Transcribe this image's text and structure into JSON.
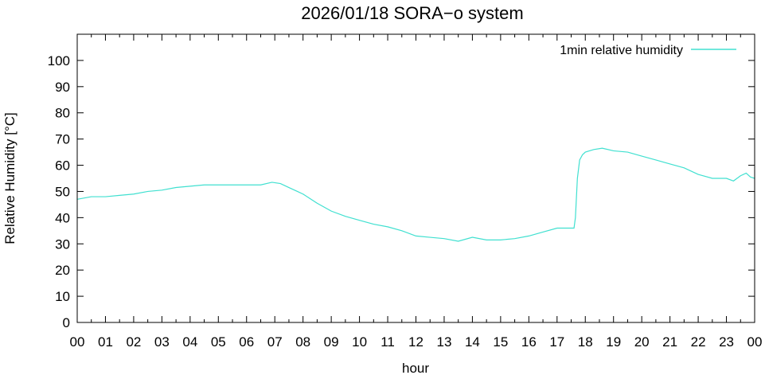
{
  "chart_data": {
    "type": "line",
    "title": "2026/01/18 SORA−o system",
    "xlabel": "hour",
    "ylabel": "Relative Humidity [°C]",
    "xlim": [
      0,
      24
    ],
    "ylim": [
      0,
      110
    ],
    "x_tick_labels": [
      "00",
      "01",
      "02",
      "03",
      "04",
      "05",
      "06",
      "07",
      "08",
      "09",
      "10",
      "11",
      "12",
      "13",
      "14",
      "15",
      "16",
      "17",
      "18",
      "19",
      "20",
      "21",
      "22",
      "23",
      "00"
    ],
    "y_ticks": [
      0,
      10,
      20,
      30,
      40,
      50,
      60,
      70,
      80,
      90,
      100
    ],
    "grid": false,
    "legend_position": "top-right",
    "series": [
      {
        "name": "1min relative humidity",
        "color": "#40e0d0",
        "x": [
          0,
          0.25,
          0.5,
          1.0,
          1.5,
          2.0,
          2.5,
          3.0,
          3.5,
          4.0,
          4.5,
          5.0,
          5.5,
          6.0,
          6.5,
          6.9,
          7.2,
          7.5,
          7.8,
          8.0,
          8.5,
          9.0,
          9.5,
          10.0,
          10.5,
          11.0,
          11.5,
          12.0,
          12.5,
          13.0,
          13.5,
          14.0,
          14.5,
          15.0,
          15.5,
          16.0,
          16.5,
          17.0,
          17.3,
          17.6,
          17.65,
          17.72,
          17.8,
          17.9,
          18.0,
          18.3,
          18.6,
          19.0,
          19.5,
          20.0,
          20.5,
          21.0,
          21.5,
          22.0,
          22.5,
          23.0,
          23.25,
          23.5,
          23.7,
          23.85,
          24.0
        ],
        "values": [
          47,
          47.5,
          48,
          48,
          48.5,
          49,
          50,
          50.5,
          51.5,
          52,
          52.5,
          52.5,
          52.5,
          52.5,
          52.5,
          53.5,
          53,
          51.5,
          50,
          49,
          45.5,
          42.5,
          40.5,
          39,
          37.5,
          36.5,
          35,
          33,
          32.5,
          32,
          31,
          32.5,
          31.5,
          31.5,
          32,
          33,
          34.5,
          36,
          36,
          36,
          40,
          55,
          62,
          64,
          65,
          66,
          66.5,
          65.5,
          65,
          63.5,
          62,
          60.5,
          59,
          56.5,
          55,
          55,
          54,
          56,
          57,
          55.5,
          55
        ]
      }
    ]
  }
}
